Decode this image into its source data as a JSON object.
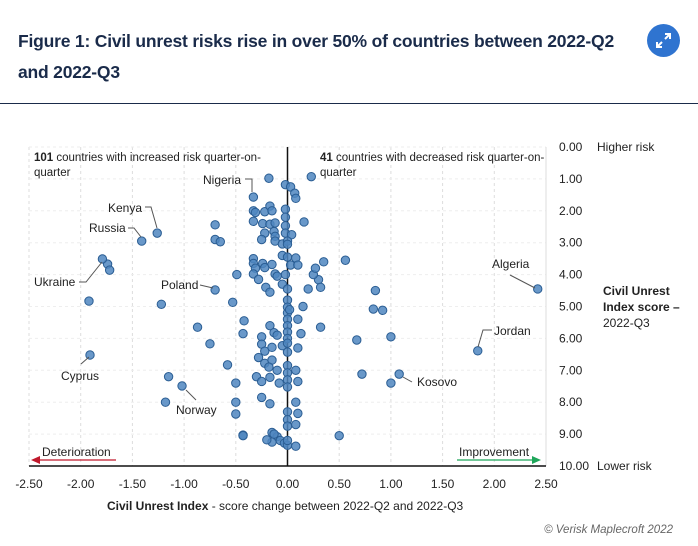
{
  "header": {
    "title": "Figure 1: Civil unrest risks rise in over 50% of countries between 2022-Q2 and 2022-Q3",
    "expand_icon": "expand-arrows-icon"
  },
  "footer": {
    "copyright": "© Verisk Maplecroft 2022"
  },
  "colors": {
    "point_fill": "#4f86c0",
    "point_stroke": "#2a5d93",
    "title": "#1a2b4a",
    "deterioration_arrow": "#c0192c",
    "improvement_arrow": "#1fa65a",
    "expand_button": "#2f74d0"
  },
  "chart_data": {
    "type": "scatter",
    "title": "Figure 1: Civil unrest risks rise in over 50% of countries between 2022-Q2 and 2022-Q3",
    "xlabel_bold": "Civil Unrest Index",
    "xlabel_rest": " - score change between 2022-Q2 and 2022-Q3",
    "ylabel_lines": [
      "Civil Unrest",
      "Index score –",
      "2022-Q3"
    ],
    "y_top_label": "Higher risk",
    "y_bottom_label": "Lower risk",
    "xlim": [
      -2.5,
      2.5
    ],
    "ylim": [
      0,
      10
    ],
    "y_inverted": true,
    "x_ticks": [
      "-2.50",
      "-2.00",
      "-1.50",
      "-1.00",
      "-0.50",
      "0.00",
      "0.50",
      "1.00",
      "1.50",
      "2.00",
      "2.50"
    ],
    "y_ticks": [
      "0.00",
      "1.00",
      "2.00",
      "3.00",
      "4.00",
      "5.00",
      "6.00",
      "7.00",
      "8.00",
      "9.00",
      "10.00"
    ],
    "grid": true,
    "notes": {
      "increased_count": "101",
      "increased_text": " countries with increased risk quarter-on-",
      "increased_text2": "quarter",
      "decreased_count": "41",
      "decreased_text": " countries with decreased risk quarter-on-",
      "decreased_text2": "quarter"
    },
    "direction_labels": {
      "left": "Deterioration",
      "right": "Improvement"
    },
    "labeled_points": [
      {
        "name": "Nigeria",
        "x": -0.33,
        "y": 1.57
      },
      {
        "name": "Kenya",
        "x": -1.26,
        "y": 2.7
      },
      {
        "name": "Russia",
        "x": -1.41,
        "y": 2.95
      },
      {
        "name": "Ukraine",
        "x": -1.79,
        "y": 3.51
      },
      {
        "name": "Poland",
        "x": -0.7,
        "y": 4.48
      },
      {
        "name": "Cyprus",
        "x": -1.91,
        "y": 6.52
      },
      {
        "name": "Norway",
        "x": -1.02,
        "y": 7.49
      },
      {
        "name": "Algeria",
        "x": 2.42,
        "y": 4.45
      },
      {
        "name": "Jordan",
        "x": 1.84,
        "y": 6.39
      },
      {
        "name": "Kosovo",
        "x": 1.08,
        "y": 7.12
      }
    ],
    "points": [
      [
        -1.74,
        3.67
      ],
      [
        -1.72,
        3.86
      ],
      [
        -1.92,
        4.83
      ],
      [
        -1.22,
        4.93
      ],
      [
        -0.87,
        5.65
      ],
      [
        -0.75,
        6.17
      ],
      [
        -0.58,
        6.83
      ],
      [
        -0.5,
        7.4
      ],
      [
        -1.15,
        7.2
      ],
      [
        -1.18,
        8.0
      ],
      [
        -0.5,
        8.0
      ],
      [
        -0.5,
        8.37
      ],
      [
        -0.43,
        9.03
      ],
      [
        0.5,
        9.05
      ],
      [
        -0.18,
        0.98
      ],
      [
        -0.02,
        1.18
      ],
      [
        0.03,
        1.25
      ],
      [
        0.07,
        1.45
      ],
      [
        0.23,
        0.93
      ],
      [
        0.08,
        1.61
      ],
      [
        -0.7,
        2.44
      ],
      [
        -0.7,
        2.9
      ],
      [
        -0.65,
        2.97
      ],
      [
        -0.33,
        2.0
      ],
      [
        -0.31,
        2.05
      ],
      [
        -0.22,
        2.03
      ],
      [
        -0.17,
        1.85
      ],
      [
        -0.15,
        2.0
      ],
      [
        -0.02,
        1.95
      ],
      [
        -0.02,
        2.2
      ],
      [
        -0.02,
        2.47
      ],
      [
        -0.02,
        2.7
      ],
      [
        0.04,
        2.75
      ],
      [
        -0.33,
        2.33
      ],
      [
        -0.24,
        2.4
      ],
      [
        -0.17,
        2.42
      ],
      [
        -0.13,
        2.65
      ],
      [
        -0.12,
        2.38
      ],
      [
        -0.22,
        2.7
      ],
      [
        -0.12,
        2.8
      ],
      [
        -0.25,
        2.9
      ],
      [
        -0.12,
        2.95
      ],
      [
        -0.05,
        3.04
      ],
      [
        0.0,
        2.95
      ],
      [
        0.0,
        3.05
      ],
      [
        0.16,
        2.35
      ],
      [
        0.56,
        3.55
      ],
      [
        -0.33,
        3.5
      ],
      [
        -0.33,
        3.65
      ],
      [
        -0.31,
        3.8
      ],
      [
        -0.33,
        3.98
      ],
      [
        -0.24,
        3.65
      ],
      [
        -0.22,
        3.78
      ],
      [
        -0.15,
        3.68
      ],
      [
        -0.12,
        3.98
      ],
      [
        -0.05,
        3.4
      ],
      [
        0.0,
        3.45
      ],
      [
        0.08,
        3.48
      ],
      [
        0.03,
        3.7
      ],
      [
        0.3,
        4.16
      ],
      [
        0.2,
        4.45
      ],
      [
        -0.49,
        4.0
      ],
      [
        -0.28,
        4.15
      ],
      [
        -0.21,
        4.4
      ],
      [
        -0.17,
        4.55
      ],
      [
        -0.05,
        4.3
      ],
      [
        -0.02,
        4.0
      ],
      [
        -0.1,
        4.05
      ],
      [
        0.0,
        4.45
      ],
      [
        0.1,
        3.7
      ],
      [
        0.25,
        4.0
      ],
      [
        0.32,
        4.4
      ],
      [
        0.27,
        3.8
      ],
      [
        0.35,
        3.6
      ],
      [
        0.85,
        4.5
      ],
      [
        -0.53,
        4.87
      ],
      [
        -0.42,
        5.45
      ],
      [
        -0.17,
        5.6
      ],
      [
        -0.13,
        5.82
      ],
      [
        0.0,
        4.8
      ],
      [
        0.0,
        5.02
      ],
      [
        0.0,
        5.2
      ],
      [
        0.0,
        5.4
      ],
      [
        0.0,
        5.6
      ],
      [
        0.0,
        5.8
      ],
      [
        0.0,
        6.0
      ],
      [
        0.02,
        5.1
      ],
      [
        0.1,
        5.4
      ],
      [
        0.15,
        5.0
      ],
      [
        0.32,
        5.65
      ],
      [
        0.83,
        5.08
      ],
      [
        0.92,
        5.12
      ],
      [
        -0.43,
        5.85
      ],
      [
        -0.25,
        5.95
      ],
      [
        -0.25,
        6.18
      ],
      [
        -0.22,
        6.4
      ],
      [
        -0.15,
        6.28
      ],
      [
        -0.1,
        5.9
      ],
      [
        -0.05,
        6.23
      ],
      [
        0.0,
        6.15
      ],
      [
        0.0,
        6.43
      ],
      [
        0.1,
        6.3
      ],
      [
        0.13,
        5.85
      ],
      [
        0.67,
        6.05
      ],
      [
        1.0,
        5.95
      ],
      [
        -0.28,
        6.6
      ],
      [
        -0.22,
        6.78
      ],
      [
        -0.15,
        6.68
      ],
      [
        -0.18,
        6.9
      ],
      [
        -0.1,
        7.0
      ],
      [
        -0.3,
        7.2
      ],
      [
        -0.25,
        7.35
      ],
      [
        -0.17,
        7.22
      ],
      [
        -0.08,
        7.4
      ],
      [
        0.0,
        6.85
      ],
      [
        0.0,
        7.08
      ],
      [
        0.0,
        7.3
      ],
      [
        0.0,
        7.52
      ],
      [
        0.08,
        7.0
      ],
      [
        0.1,
        7.35
      ],
      [
        0.72,
        7.12
      ],
      [
        1.0,
        7.4
      ],
      [
        -0.25,
        7.85
      ],
      [
        -0.17,
        8.05
      ],
      [
        0.0,
        8.3
      ],
      [
        0.0,
        8.55
      ],
      [
        0.0,
        8.75
      ],
      [
        0.08,
        8.0
      ],
      [
        0.1,
        8.35
      ],
      [
        0.08,
        8.7
      ],
      [
        -0.43,
        9.05
      ],
      [
        -0.15,
        8.95
      ],
      [
        -0.1,
        9.08
      ],
      [
        -0.15,
        9.25
      ],
      [
        -0.07,
        9.2
      ],
      [
        -0.03,
        9.28
      ],
      [
        0.0,
        9.35
      ],
      [
        0.0,
        9.2
      ],
      [
        0.08,
        9.38
      ],
      [
        -0.2,
        9.18
      ],
      [
        -0.13,
        9.0
      ]
    ]
  }
}
